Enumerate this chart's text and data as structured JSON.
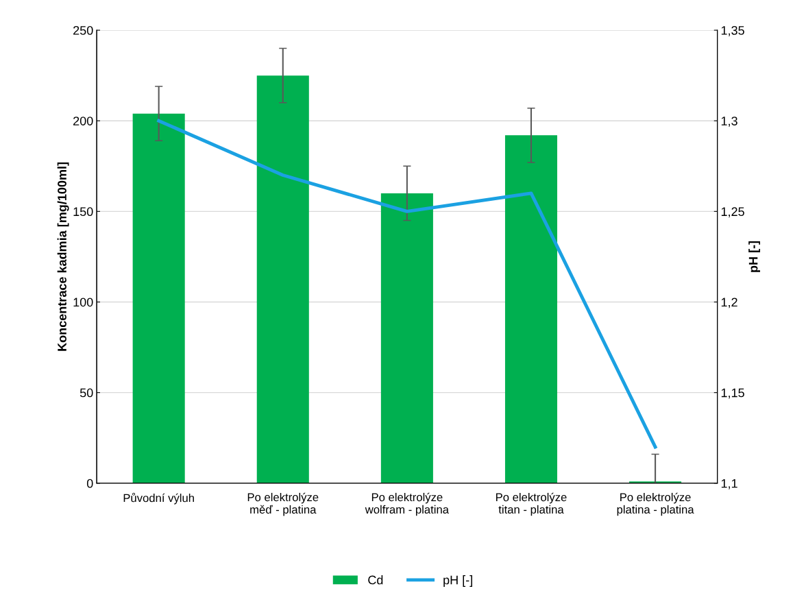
{
  "chart_data": {
    "type": "bar",
    "ylabel": "Koncentrace kadmia [mg/100ml]",
    "y2label": "pH [-]",
    "categories": [
      "Původní výluh",
      "Po elektrolýze\nměď - platina",
      "Po elektrolýze\nwolfram - platina",
      "Po elektrolýze\ntitan - platina",
      "Po elektrolýze\nplatina - platina"
    ],
    "series": [
      {
        "name": "Cd",
        "color": "#00b050",
        "values": [
          204,
          225,
          160,
          192,
          1
        ],
        "errors": [
          15,
          15,
          15,
          15,
          15
        ]
      },
      {
        "name": "pH [-]",
        "type": "line",
        "axis": "y2",
        "color": "#1ba1e2",
        "values": [
          1.3,
          1.27,
          1.25,
          1.26,
          1.12
        ]
      }
    ],
    "ylim": [
      0,
      250
    ],
    "yticks": [
      0,
      50,
      100,
      150,
      200,
      250
    ],
    "y2lim": [
      1.1,
      1.35
    ],
    "y2ticks": [
      {
        "value": 1.1,
        "label": "1,1"
      },
      {
        "value": 1.15,
        "label": "1,15"
      },
      {
        "value": 1.2,
        "label": "1,2"
      },
      {
        "value": 1.25,
        "label": "1,25"
      },
      {
        "value": 1.3,
        "label": "1,3"
      },
      {
        "value": 1.35,
        "label": "1,35"
      }
    ],
    "grid": "y",
    "legend": "bottom",
    "marker": "none",
    "line_style": "solid"
  }
}
